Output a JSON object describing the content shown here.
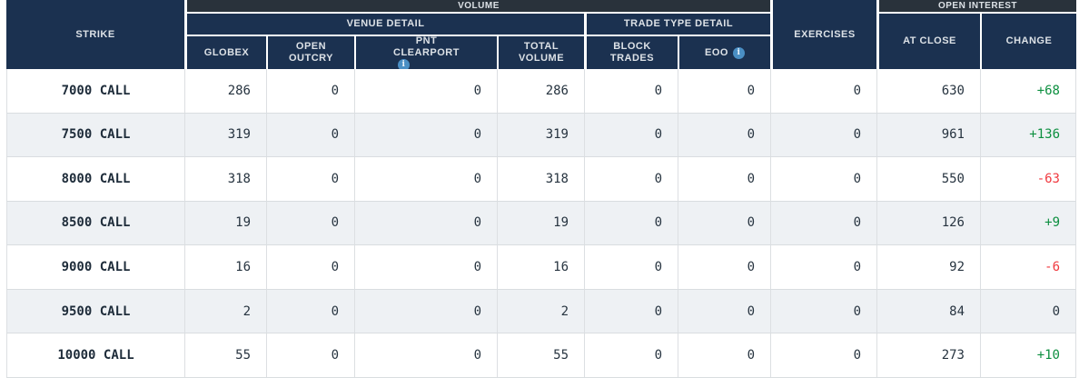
{
  "colors": {
    "header_navy": "#1b3150",
    "header_band": "#29323b",
    "header_text": "#dce1e6",
    "row_alt_bg": "#eef1f4",
    "border": "#d9dde0",
    "text": "#273440",
    "positive": "#0c8f3f",
    "negative": "#f0393f",
    "info_blue": "#4a8fc4"
  },
  "header": {
    "strike": "STRIKE",
    "volume": "VOLUME",
    "venue_detail": "VENUE DETAIL",
    "trade_type_detail": "TRADE TYPE DETAIL",
    "globex": "GLOBEX",
    "open_outcry_line1": "OPEN",
    "open_outcry_line2": "OUTCRY",
    "pnt_line1": "PNT",
    "pnt_line2": "CLEARPORT",
    "total_line1": "TOTAL",
    "total_line2": "VOLUME",
    "block_line1": "BLOCK",
    "block_line2": "TRADES",
    "eoo": "EOO",
    "exercises": "EXERCISES",
    "open_interest": "OPEN INTEREST",
    "at_close": "AT CLOSE",
    "change": "CHANGE",
    "info_icon_glyph": "i"
  },
  "rows": [
    {
      "strike": "7000 CALL",
      "globex": "286",
      "open_outcry": "0",
      "pnt_clearport": "0",
      "total_volume": "286",
      "block_trades": "0",
      "eoo": "0",
      "exercises": "0",
      "at_close": "630",
      "change": "+68"
    },
    {
      "strike": "7500 CALL",
      "globex": "319",
      "open_outcry": "0",
      "pnt_clearport": "0",
      "total_volume": "319",
      "block_trades": "0",
      "eoo": "0",
      "exercises": "0",
      "at_close": "961",
      "change": "+136"
    },
    {
      "strike": "8000 CALL",
      "globex": "318",
      "open_outcry": "0",
      "pnt_clearport": "0",
      "total_volume": "318",
      "block_trades": "0",
      "eoo": "0",
      "exercises": "0",
      "at_close": "550",
      "change": "-63"
    },
    {
      "strike": "8500 CALL",
      "globex": "19",
      "open_outcry": "0",
      "pnt_clearport": "0",
      "total_volume": "19",
      "block_trades": "0",
      "eoo": "0",
      "exercises": "0",
      "at_close": "126",
      "change": "+9"
    },
    {
      "strike": "9000 CALL",
      "globex": "16",
      "open_outcry": "0",
      "pnt_clearport": "0",
      "total_volume": "16",
      "block_trades": "0",
      "eoo": "0",
      "exercises": "0",
      "at_close": "92",
      "change": "-6"
    },
    {
      "strike": "9500 CALL",
      "globex": "2",
      "open_outcry": "0",
      "pnt_clearport": "0",
      "total_volume": "2",
      "block_trades": "0",
      "eoo": "0",
      "exercises": "0",
      "at_close": "84",
      "change": "0"
    },
    {
      "strike": "10000 CALL",
      "globex": "55",
      "open_outcry": "0",
      "pnt_clearport": "0",
      "total_volume": "55",
      "block_trades": "0",
      "eoo": "0",
      "exercises": "0",
      "at_close": "273",
      "change": "+10"
    }
  ]
}
